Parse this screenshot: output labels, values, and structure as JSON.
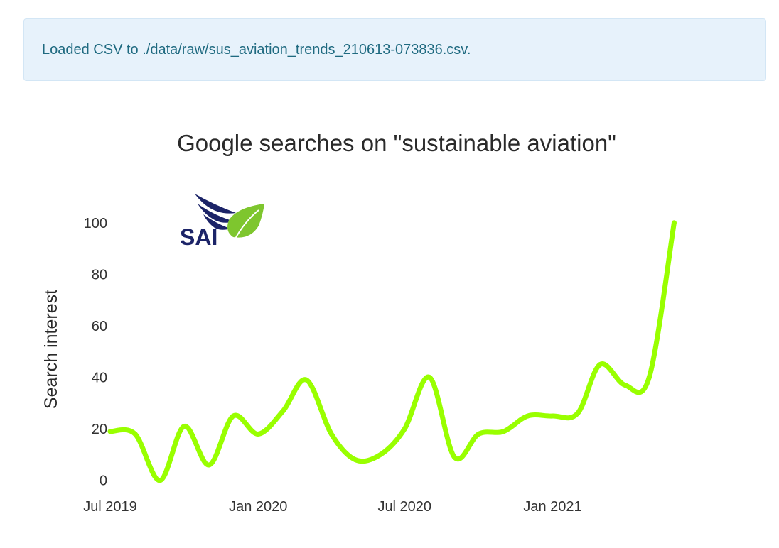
{
  "alert": {
    "message": "Loaded CSV to ./data/raw/sus_aviation_trends_210613-073836.csv."
  },
  "logo": {
    "text": "SAI",
    "colors": {
      "navy": "#1c2468",
      "leaf": "#7ec62e"
    }
  },
  "chart_data": {
    "type": "line",
    "title": "Google searches on \"sustainable aviation\"",
    "xlabel": "",
    "ylabel": "Search interest",
    "line_color": "#99ff00",
    "ylim": [
      -2,
      103
    ],
    "xlim": [
      "2019-07-01",
      "2021-06-13"
    ],
    "y_ticks": [
      0,
      20,
      40,
      60,
      80,
      100
    ],
    "x_ticks": [
      {
        "date": "2019-07-01",
        "label": "Jul 2019"
      },
      {
        "date": "2020-01-01",
        "label": "Jan 2020"
      },
      {
        "date": "2020-07-01",
        "label": "Jul 2020"
      },
      {
        "date": "2021-01-01",
        "label": "Jan 2021"
      }
    ],
    "grid": false,
    "legend": "none",
    "series": [
      {
        "x": [
          "2019-07-01",
          "2019-08-01",
          "2019-09-01",
          "2019-10-01",
          "2019-11-01",
          "2019-12-01",
          "2020-01-01",
          "2020-02-01",
          "2020-03-01",
          "2020-04-01",
          "2020-05-01",
          "2020-06-01",
          "2020-07-01",
          "2020-08-01",
          "2020-09-01",
          "2020-10-01",
          "2020-11-01",
          "2020-12-01",
          "2021-01-01",
          "2021-02-01",
          "2021-03-01",
          "2021-04-01",
          "2021-05-01",
          "2021-06-01"
        ],
        "y": [
          19,
          18,
          0,
          21,
          6,
          25,
          18,
          27,
          39,
          18,
          8,
          10,
          20,
          40,
          9,
          18,
          19,
          25,
          25,
          26,
          45,
          37,
          40,
          100
        ]
      }
    ]
  }
}
